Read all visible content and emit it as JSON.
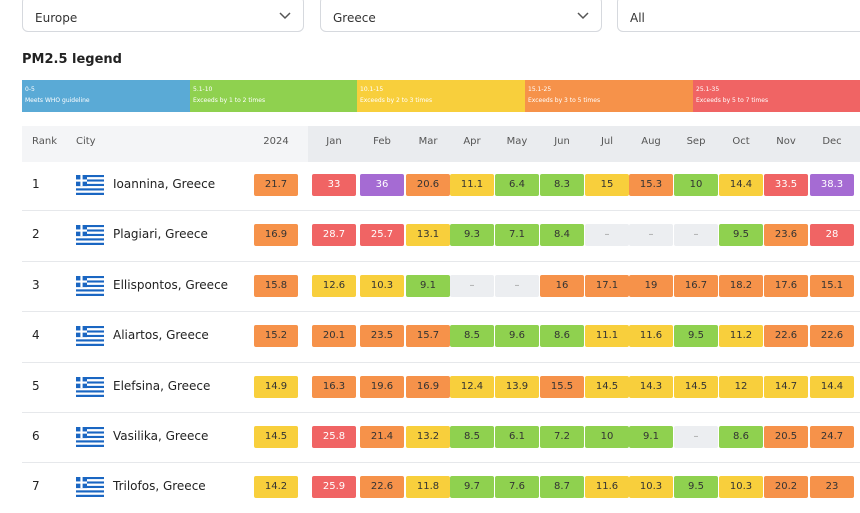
{
  "filters": [
    "Europe",
    "Greece",
    "All"
  ],
  "legend": {
    "title": "PM2.5 legend",
    "items": [
      {
        "range": "0-5",
        "description": "Meets WHO guideline",
        "color": "#5aaad6"
      },
      {
        "range": "5.1-10",
        "description": "Exceeds by 1 to 2 times",
        "color": "#8fd14f"
      },
      {
        "range": "10.1-15",
        "description": "Exceeds by 2 to 3 times",
        "color": "#f8cf3c"
      },
      {
        "range": "15.1-25",
        "description": "Exceeds by 3 to 5 times",
        "color": "#f6924a"
      },
      {
        "range": "25.1-35",
        "description": "Exceeds by 5 to 7 times",
        "color": "#f06464"
      }
    ],
    "above_color": "#a56bd3",
    "missing_color": "#eceef1"
  },
  "table": {
    "header": [
      "Rank",
      "City",
      "2024",
      "Jan",
      "Feb",
      "Mar",
      "Apr",
      "May",
      "Jun",
      "Jul",
      "Aug",
      "Sep",
      "Oct",
      "Nov",
      "Dec"
    ],
    "rows": [
      {
        "rank": "1",
        "city": "Ioannina, Greece",
        "annual": 21.7,
        "months": [
          33,
          36,
          20.6,
          11.1,
          6.4,
          8.3,
          15,
          15.3,
          10,
          14.4,
          33.5,
          38.3
        ]
      },
      {
        "rank": "2",
        "city": "Plagiari, Greece",
        "annual": 16.9,
        "months": [
          28.7,
          25.7,
          13.1,
          9.3,
          7.1,
          8.4,
          "–",
          "–",
          "–",
          9.5,
          23.6,
          28
        ]
      },
      {
        "rank": "3",
        "city": "Ellispontos, Greece",
        "annual": 15.8,
        "months": [
          12.6,
          10.3,
          9.1,
          "–",
          "–",
          16,
          17.1,
          19,
          16.7,
          18.2,
          17.6,
          15.1
        ]
      },
      {
        "rank": "4",
        "city": "Aliartos, Greece",
        "annual": 15.2,
        "months": [
          20.1,
          23.5,
          15.7,
          8.5,
          9.6,
          8.6,
          11.1,
          11.6,
          9.5,
          11.2,
          22.6,
          22.6
        ]
      },
      {
        "rank": "5",
        "city": "Elefsina, Greece",
        "annual": 14.9,
        "months": [
          16.3,
          19.6,
          16.9,
          12.4,
          13.9,
          15.5,
          14.5,
          14.3,
          14.5,
          12,
          14.7,
          14.4
        ]
      },
      {
        "rank": "6",
        "city": "Vasilika, Greece",
        "annual": 14.5,
        "months": [
          25.8,
          21.4,
          13.2,
          8.5,
          6.1,
          7.2,
          10,
          9.1,
          "–",
          8.6,
          20.5,
          24.7
        ]
      },
      {
        "rank": "7",
        "city": "Trilofos, Greece",
        "annual": 14.2,
        "months": [
          25.9,
          22.6,
          11.8,
          9.7,
          7.6,
          8.7,
          11.6,
          10.3,
          9.5,
          10.3,
          20.2,
          23
        ]
      }
    ]
  }
}
